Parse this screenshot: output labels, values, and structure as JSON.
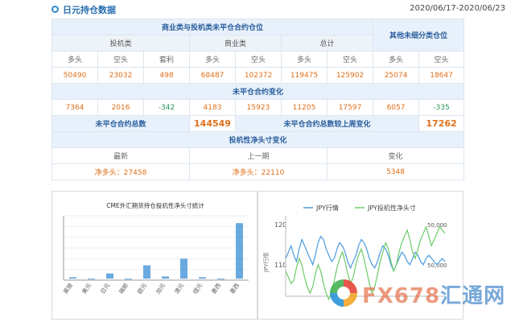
{
  "header": {
    "title": "日元持仓数据",
    "date_range": "2020/06/17-2020/06/23"
  },
  "table": {
    "head_commercial": "商业类与投机类未平仓合约仓位",
    "head_other": "其他未细分类仓位",
    "group_spec": "投机类",
    "group_comm": "商业类",
    "group_total": "总计",
    "col_long": "多头",
    "col_short": "空头",
    "col_spread": "套利",
    "values": {
      "spec_long": "50490",
      "spec_short": "23032",
      "spec_spread": "498",
      "comm_long": "68487",
      "comm_short": "102372",
      "total_long": "119475",
      "total_short": "125902",
      "other_long": "25074",
      "other_short": "18647"
    },
    "change_head": "未平仓合约变化",
    "changes": {
      "spec_long": "7364",
      "spec_short": "2016",
      "spec_spread": "-342",
      "comm_long": "4183",
      "comm_short": "15923",
      "total_long": "11205",
      "total_short": "17597",
      "other_long": "6057",
      "other_short": "-335"
    },
    "oi_total_label": "未平仓合约总数",
    "oi_total_value": "144549",
    "oi_change_label": "未平仓合约总数较上周变化",
    "oi_change_value": "17262",
    "net_head": "投机性净头寸变化",
    "net_latest_label": "最新",
    "net_prev_label": "上一期",
    "net_change_label": "变化",
    "net_latest": "净多头：27458",
    "net_prev": "净多头：22110",
    "net_change": "5348"
  },
  "colors": {
    "bar": "#6aa9e0",
    "jpy_line": "#4a9be0",
    "net_line": "#6ccc66",
    "accent": "#e0701a"
  },
  "chart_data": [
    {
      "type": "bar",
      "title": "CME外汇期货持仓投机性净头寸统计",
      "categories": [
        "英镑",
        "美元",
        "日元",
        "瑞郎",
        "欧元",
        "加元",
        "澳元",
        "纽元",
        "墨西",
        "墨西"
      ],
      "values": [
        2,
        0,
        7,
        0,
        18,
        3,
        27,
        2,
        0,
        75
      ],
      "ylim": [
        -2,
        85
      ]
    },
    {
      "type": "line",
      "legend": [
        "JPY行情",
        "JPY投机性净头寸"
      ],
      "ylabel_left": "JPY行情",
      "left_ticks": [
        "120",
        "110"
      ],
      "right_ticks": [
        "50,000",
        "50,000"
      ],
      "series": [
        {
          "name": "JPY行情",
          "values": [
            112,
            114,
            116,
            113,
            111,
            115,
            118,
            116,
            114,
            112,
            110,
            113,
            117,
            119,
            118,
            115,
            113,
            111,
            112,
            115,
            117,
            116,
            114,
            111,
            109,
            111,
            113,
            116,
            118,
            117,
            115,
            112,
            110,
            109,
            111,
            114,
            116,
            115,
            113,
            110,
            108,
            110,
            112,
            114,
            113,
            111,
            110,
            112,
            114,
            113,
            111,
            110,
            112,
            113,
            112,
            111,
            110,
            111,
            112,
            111
          ]
        },
        {
          "name": "JPY投机性净头寸",
          "values": [
            108,
            106,
            104,
            105,
            109,
            112,
            110,
            106,
            103,
            101,
            103,
            107,
            110,
            108,
            104,
            101,
            99,
            101,
            105,
            109,
            112,
            114,
            111,
            107,
            104,
            106,
            110,
            113,
            115,
            112,
            108,
            104,
            101,
            103,
            107,
            111,
            114,
            117,
            115,
            111,
            108,
            110,
            114,
            117,
            119,
            121,
            118,
            114,
            112,
            115,
            118,
            120,
            122,
            119,
            116,
            118,
            120,
            122,
            121,
            120
          ]
        }
      ],
      "ylim": [
        100,
        124
      ]
    }
  ],
  "watermark": {
    "latin": "FX678",
    "cn": "汇通网"
  }
}
